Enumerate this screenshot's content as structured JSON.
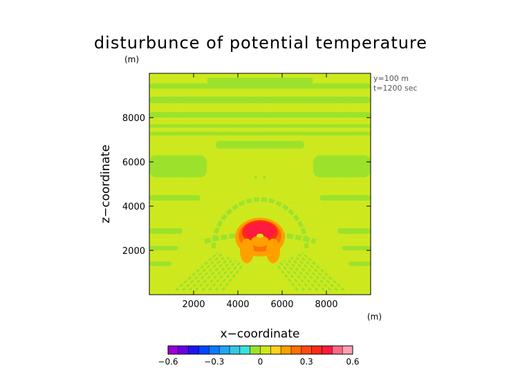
{
  "chart_data": {
    "type": "heatmap",
    "title": "disturbunce of potential temperature",
    "title_unit": "(m)",
    "xlabel": "x−coordinate",
    "ylabel": "z−coordinate",
    "x_unit": "(m)",
    "xlim": [
      0,
      10000
    ],
    "ylim": [
      0,
      10000
    ],
    "xticks": [
      2000,
      4000,
      6000,
      8000
    ],
    "yticks": [
      2000,
      4000,
      6000,
      8000
    ],
    "xtick_labels": [
      "2000",
      "4000",
      "6000",
      "8000"
    ],
    "ytick_labels": [
      "2000",
      "4000",
      "6000",
      "8000"
    ],
    "annotations": [
      "y=100 m",
      "t=1200 sec"
    ],
    "background_level": 0.05,
    "bands": [
      {
        "x0": 0,
        "x1": 10000,
        "z0": 9300,
        "z1": 9550,
        "value": -0.03
      },
      {
        "x0": 2600,
        "x1": 7400,
        "z0": 9550,
        "z1": 9800,
        "value": -0.03
      },
      {
        "x0": 0,
        "x1": 10000,
        "z0": 8650,
        "z1": 8950,
        "value": -0.03
      },
      {
        "x0": 0,
        "x1": 10000,
        "z0": 8000,
        "z1": 8250,
        "value": -0.03
      },
      {
        "x0": 0,
        "x1": 10000,
        "z0": 7550,
        "z1": 7700,
        "value": -0.03
      },
      {
        "x0": 0,
        "x1": 10000,
        "z0": 7200,
        "z1": 7350,
        "value": -0.03
      },
      {
        "x0": 3000,
        "x1": 7000,
        "z0": 6600,
        "z1": 6950,
        "value": -0.03
      },
      {
        "x0": 0,
        "x1": 2600,
        "z0": 5300,
        "z1": 6300,
        "value": -0.03
      },
      {
        "x0": 7400,
        "x1": 10000,
        "z0": 5300,
        "z1": 6300,
        "value": -0.03
      },
      {
        "x0": 0,
        "x1": 2300,
        "z0": 4250,
        "z1": 4500,
        "value": -0.03
      },
      {
        "x0": 7700,
        "x1": 10000,
        "z0": 4250,
        "z1": 4500,
        "value": -0.03
      },
      {
        "x0": 0,
        "x1": 1500,
        "z0": 2750,
        "z1": 3000,
        "value": -0.03
      },
      {
        "x0": 8500,
        "x1": 10000,
        "z0": 2750,
        "z1": 3000,
        "value": -0.03
      },
      {
        "x0": 0,
        "x1": 1300,
        "z0": 2000,
        "z1": 2200,
        "value": -0.03
      },
      {
        "x0": 8700,
        "x1": 10000,
        "z0": 2000,
        "z1": 2200,
        "value": -0.03
      },
      {
        "x0": 0,
        "x1": 1000,
        "z0": 1300,
        "z1": 1500,
        "value": -0.03
      },
      {
        "x0": 9000,
        "x1": 10000,
        "z0": 1300,
        "z1": 1500,
        "value": -0.03
      }
    ],
    "warm_bubble": {
      "center_x": 5000,
      "center_z": 2600,
      "max_value": 0.45
    },
    "colorbar": {
      "min": -0.6,
      "max": 0.6,
      "tick_values": [
        -0.6,
        -0.3,
        0,
        0.3,
        0.6
      ],
      "tick_labels": [
        "−0.6",
        "−0.3",
        "0",
        "0.3",
        "0.6"
      ],
      "colors": [
        "#9a00d4",
        "#6a00e6",
        "#1c14f2",
        "#0046ff",
        "#0a7cff",
        "#20a6f4",
        "#35c8e6",
        "#3ae2dc",
        "#9ce22c",
        "#cfe81a",
        "#ffd21c",
        "#ffa000",
        "#ff7000",
        "#ff4a14",
        "#ff2a14",
        "#ff1a40",
        "#ff6a80",
        "#ffa0b4"
      ]
    }
  }
}
